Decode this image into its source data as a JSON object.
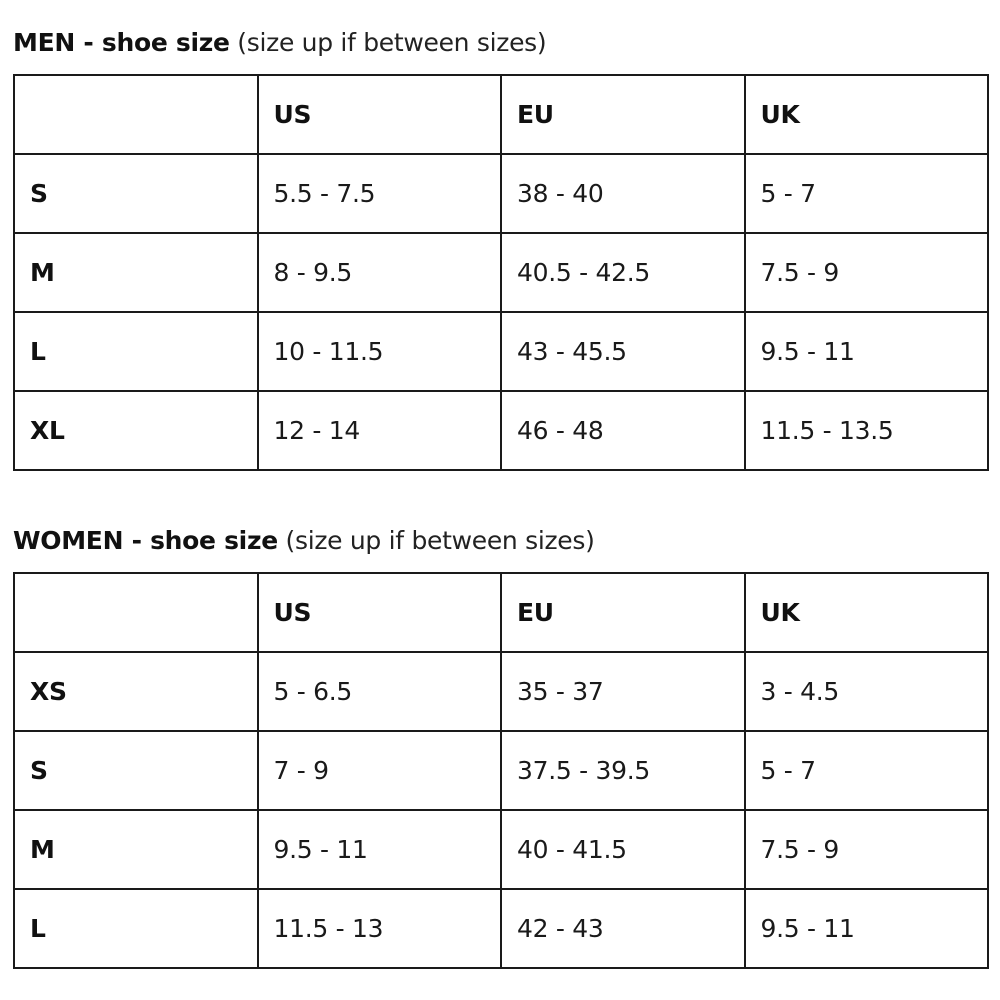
{
  "sections": [
    {
      "title_bold": "MEN - shoe size",
      "title_note": "(size up if between sizes)",
      "columns": [
        "",
        "US",
        "EU",
        "UK"
      ],
      "rows": [
        {
          "size": "S",
          "us": "5.5 - 7.5",
          "eu": "38 - 40",
          "uk": "5 - 7"
        },
        {
          "size": "M",
          "us": "8 - 9.5",
          "eu": "40.5 - 42.5",
          "uk": "7.5 - 9"
        },
        {
          "size": "L",
          "us": "10 - 11.5",
          "eu": "43 - 45.5",
          "uk": "9.5 - 11"
        },
        {
          "size": "XL",
          "us": "12 - 14",
          "eu": "46 - 48",
          "uk": "11.5 - 13.5"
        }
      ]
    },
    {
      "title_bold": "WOMEN - shoe size",
      "title_note": "(size up if between sizes)",
      "columns": [
        "",
        "US",
        "EU",
        "UK"
      ],
      "rows": [
        {
          "size": "XS",
          "us": "5 - 6.5",
          "eu": "35 - 37",
          "uk": "3 - 4.5"
        },
        {
          "size": "S",
          "us": "7 - 9",
          "eu": "37.5 - 39.5",
          "uk": "5 - 7"
        },
        {
          "size": "M",
          "us": "9.5 - 11",
          "eu": "40 - 41.5",
          "uk": "7.5 - 9"
        },
        {
          "size": "L",
          "us": "11.5 - 13",
          "eu": "42 - 43",
          "uk": "9.5 - 11"
        }
      ]
    }
  ]
}
